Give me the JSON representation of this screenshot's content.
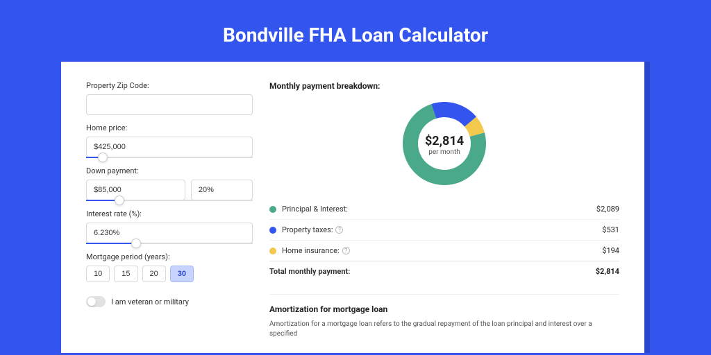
{
  "page_title": "Bondville FHA Loan Calculator",
  "colors": {
    "page_bg": "#3355ee",
    "shadow_bg": "#2a46cc",
    "card_bg": "#ffffff",
    "principal": "#4aa98a",
    "tax": "#3355ee",
    "insurance": "#f2c94c"
  },
  "form": {
    "zip_label": "Property Zip Code:",
    "zip_value": "",
    "price_label": "Home price:",
    "price_value": "$425,000",
    "price_slider_pct": 10,
    "down_label": "Down payment:",
    "down_value": "$85,000",
    "down_pct_value": "20%",
    "down_slider_pct": 20,
    "rate_label": "Interest rate (%):",
    "rate_value": "6.230%",
    "rate_slider_pct": 30,
    "period_label": "Mortgage period (years):",
    "periods": [
      "10",
      "15",
      "20",
      "30"
    ],
    "period_active_index": 3,
    "veteran_label": "I am veteran or military"
  },
  "breakdown": {
    "title": "Monthly payment breakdown:",
    "total_amount": "$2,814",
    "total_sub": "per month",
    "donut": {
      "size": 120,
      "thickness": 22,
      "slices": [
        {
          "name": "insurance",
          "pct": 6.9,
          "color": "#f2c94c"
        },
        {
          "name": "principal",
          "pct": 74.2,
          "color": "#4aa98a"
        },
        {
          "name": "tax",
          "pct": 18.9,
          "color": "#3355ee"
        }
      ],
      "start_angle": -40
    },
    "rows": [
      {
        "label": "Principal & Interest:",
        "value": "$2,089",
        "color": "#4aa98a",
        "info": false
      },
      {
        "label": "Property taxes:",
        "value": "$531",
        "color": "#3355ee",
        "info": true
      },
      {
        "label": "Home insurance:",
        "value": "$194",
        "color": "#f2c94c",
        "info": true
      }
    ],
    "total_label": "Total monthly payment:",
    "total_value": "$2,814"
  },
  "amort": {
    "title": "Amortization for mortgage loan",
    "text": "Amortization for a mortgage loan refers to the gradual repayment of the loan principal and interest over a specified"
  }
}
